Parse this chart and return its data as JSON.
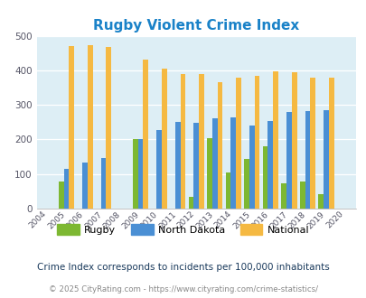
{
  "title": "Rugby Violent Crime Index",
  "years": [
    2004,
    2005,
    2006,
    2007,
    2008,
    2009,
    2010,
    2011,
    2012,
    2013,
    2014,
    2015,
    2016,
    2017,
    2018,
    2019,
    2020
  ],
  "rugby": [
    null,
    78,
    null,
    null,
    null,
    200,
    null,
    null,
    35,
    205,
    105,
    143,
    180,
    73,
    78,
    42,
    null
  ],
  "north_dakota": [
    null,
    115,
    132,
    146,
    null,
    202,
    228,
    250,
    247,
    260,
    265,
    240,
    253,
    280,
    281,
    284,
    null
  ],
  "national": [
    null,
    469,
    473,
    467,
    null,
    432,
    406,
    388,
    388,
    367,
    378,
    384,
    398,
    394,
    380,
    380,
    null
  ],
  "rugby_color": "#7db832",
  "nd_color": "#4a8fd4",
  "national_color": "#f5b942",
  "plot_bg": "#ddeef5",
  "ylim": [
    0,
    500
  ],
  "yticks": [
    0,
    100,
    200,
    300,
    400,
    500
  ],
  "title_color": "#1a82c8",
  "subtitle": "Crime Index corresponds to incidents per 100,000 inhabitants",
  "footer": "© 2025 CityRating.com - https://www.cityrating.com/crime-statistics/",
  "subtitle_color": "#1a3a5c",
  "footer_color": "#888888",
  "bar_width": 0.28
}
